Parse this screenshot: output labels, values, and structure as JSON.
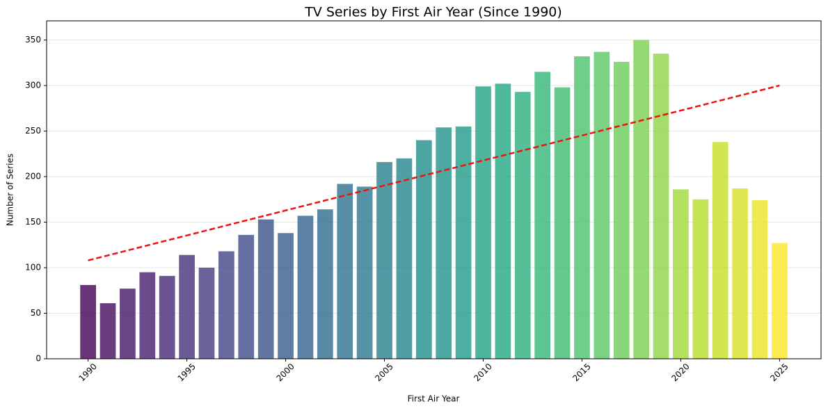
{
  "chart_data": {
    "type": "bar",
    "title": "TV Series by First Air Year (Since 1990)",
    "x_label": "First Air Year",
    "y_label": "Number of Series",
    "x": [
      1990,
      1991,
      1992,
      1993,
      1994,
      1995,
      1996,
      1997,
      1998,
      1999,
      2000,
      2001,
      2002,
      2003,
      2004,
      2005,
      2006,
      2007,
      2008,
      2009,
      2010,
      2011,
      2012,
      2013,
      2014,
      2015,
      2016,
      2017,
      2018,
      2019,
      2020,
      2021,
      2022,
      2023,
      2024,
      2025
    ],
    "values": [
      81,
      61,
      77,
      95,
      91,
      114,
      100,
      118,
      136,
      153,
      138,
      157,
      164,
      192,
      189,
      216,
      220,
      240,
      254,
      255,
      299,
      302,
      293,
      315,
      298,
      332,
      337,
      326,
      350,
      335,
      186,
      175,
      238,
      187,
      174,
      127
    ],
    "colormap": [
      "#440154",
      "#482475",
      "#414487",
      "#355f8d",
      "#2a788e",
      "#21918c",
      "#22a884",
      "#44bf70",
      "#7ad151",
      "#bddf26",
      "#fde725"
    ],
    "bar_alpha": 0.8,
    "trend": {
      "x": [
        1990,
        2025
      ],
      "values": [
        108,
        300
      ],
      "color": "#ee1111"
    },
    "xlim": [
      1987.9,
      2027.1
    ],
    "xticks": [
      1990,
      1995,
      2000,
      2005,
      2010,
      2015,
      2020,
      2025
    ],
    "ylim": [
      0,
      371
    ],
    "yticks": [
      0,
      50,
      100,
      150,
      200,
      250,
      300,
      350
    ],
    "grid": true
  }
}
